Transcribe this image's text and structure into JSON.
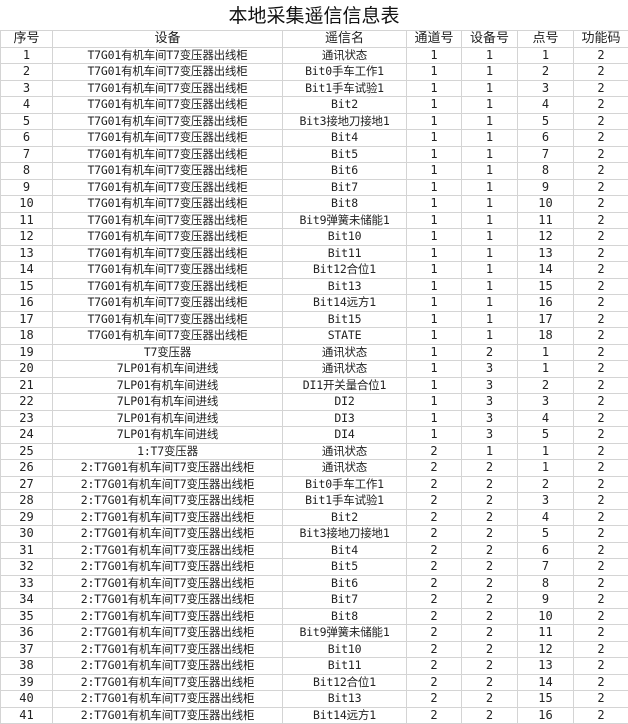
{
  "title": "本地采集遥信信息表",
  "columns": [
    "序号",
    "设备",
    "遥信名",
    "通道号",
    "设备号",
    "点号",
    "功能码"
  ],
  "rows": [
    [
      "1",
      "T7G01有机车间T7变压器出线柜",
      "通讯状态",
      "1",
      "1",
      "1",
      "2"
    ],
    [
      "2",
      "T7G01有机车间T7变压器出线柜",
      "Bit0手车工作1",
      "1",
      "1",
      "2",
      "2"
    ],
    [
      "3",
      "T7G01有机车间T7变压器出线柜",
      "Bit1手车试验1",
      "1",
      "1",
      "3",
      "2"
    ],
    [
      "4",
      "T7G01有机车间T7变压器出线柜",
      "Bit2",
      "1",
      "1",
      "4",
      "2"
    ],
    [
      "5",
      "T7G01有机车间T7变压器出线柜",
      "Bit3接地刀接地1",
      "1",
      "1",
      "5",
      "2"
    ],
    [
      "6",
      "T7G01有机车间T7变压器出线柜",
      "Bit4",
      "1",
      "1",
      "6",
      "2"
    ],
    [
      "7",
      "T7G01有机车间T7变压器出线柜",
      "Bit5",
      "1",
      "1",
      "7",
      "2"
    ],
    [
      "8",
      "T7G01有机车间T7变压器出线柜",
      "Bit6",
      "1",
      "1",
      "8",
      "2"
    ],
    [
      "9",
      "T7G01有机车间T7变压器出线柜",
      "Bit7",
      "1",
      "1",
      "9",
      "2"
    ],
    [
      "10",
      "T7G01有机车间T7变压器出线柜",
      "Bit8",
      "1",
      "1",
      "10",
      "2"
    ],
    [
      "11",
      "T7G01有机车间T7变压器出线柜",
      "Bit9弹簧未储能1",
      "1",
      "1",
      "11",
      "2"
    ],
    [
      "12",
      "T7G01有机车间T7变压器出线柜",
      "Bit10",
      "1",
      "1",
      "12",
      "2"
    ],
    [
      "13",
      "T7G01有机车间T7变压器出线柜",
      "Bit11",
      "1",
      "1",
      "13",
      "2"
    ],
    [
      "14",
      "T7G01有机车间T7变压器出线柜",
      "Bit12合位1",
      "1",
      "1",
      "14",
      "2"
    ],
    [
      "15",
      "T7G01有机车间T7变压器出线柜",
      "Bit13",
      "1",
      "1",
      "15",
      "2"
    ],
    [
      "16",
      "T7G01有机车间T7变压器出线柜",
      "Bit14远方1",
      "1",
      "1",
      "16",
      "2"
    ],
    [
      "17",
      "T7G01有机车间T7变压器出线柜",
      "Bit15",
      "1",
      "1",
      "17",
      "2"
    ],
    [
      "18",
      "T7G01有机车间T7变压器出线柜",
      "STATE",
      "1",
      "1",
      "18",
      "2"
    ],
    [
      "19",
      "T7变压器",
      "通讯状态",
      "1",
      "2",
      "1",
      "2"
    ],
    [
      "20",
      "7LP01有机车间进线",
      "通讯状态",
      "1",
      "3",
      "1",
      "2"
    ],
    [
      "21",
      "7LP01有机车间进线",
      "DI1开关量合位1",
      "1",
      "3",
      "2",
      "2"
    ],
    [
      "22",
      "7LP01有机车间进线",
      "DI2",
      "1",
      "3",
      "3",
      "2"
    ],
    [
      "23",
      "7LP01有机车间进线",
      "DI3",
      "1",
      "3",
      "4",
      "2"
    ],
    [
      "24",
      "7LP01有机车间进线",
      "DI4",
      "1",
      "3",
      "5",
      "2"
    ],
    [
      "25",
      "1:T7变压器",
      "通讯状态",
      "2",
      "1",
      "1",
      "2"
    ],
    [
      "26",
      "2:T7G01有机车间T7变压器出线柜",
      "通讯状态",
      "2",
      "2",
      "1",
      "2"
    ],
    [
      "27",
      "2:T7G01有机车间T7变压器出线柜",
      "Bit0手车工作1",
      "2",
      "2",
      "2",
      "2"
    ],
    [
      "28",
      "2:T7G01有机车间T7变压器出线柜",
      "Bit1手车试验1",
      "2",
      "2",
      "3",
      "2"
    ],
    [
      "29",
      "2:T7G01有机车间T7变压器出线柜",
      "Bit2",
      "2",
      "2",
      "4",
      "2"
    ],
    [
      "30",
      "2:T7G01有机车间T7变压器出线柜",
      "Bit3接地刀接地1",
      "2",
      "2",
      "5",
      "2"
    ],
    [
      "31",
      "2:T7G01有机车间T7变压器出线柜",
      "Bit4",
      "2",
      "2",
      "6",
      "2"
    ],
    [
      "32",
      "2:T7G01有机车间T7变压器出线柜",
      "Bit5",
      "2",
      "2",
      "7",
      "2"
    ],
    [
      "33",
      "2:T7G01有机车间T7变压器出线柜",
      "Bit6",
      "2",
      "2",
      "8",
      "2"
    ],
    [
      "34",
      "2:T7G01有机车间T7变压器出线柜",
      "Bit7",
      "2",
      "2",
      "9",
      "2"
    ],
    [
      "35",
      "2:T7G01有机车间T7变压器出线柜",
      "Bit8",
      "2",
      "2",
      "10",
      "2"
    ],
    [
      "36",
      "2:T7G01有机车间T7变压器出线柜",
      "Bit9弹簧未储能1",
      "2",
      "2",
      "11",
      "2"
    ],
    [
      "37",
      "2:T7G01有机车间T7变压器出线柜",
      "Bit10",
      "2",
      "2",
      "12",
      "2"
    ],
    [
      "38",
      "2:T7G01有机车间T7变压器出线柜",
      "Bit11",
      "2",
      "2",
      "13",
      "2"
    ],
    [
      "39",
      "2:T7G01有机车间T7变压器出线柜",
      "Bit12合位1",
      "2",
      "2",
      "14",
      "2"
    ],
    [
      "40",
      "2:T7G01有机车间T7变压器出线柜",
      "Bit13",
      "2",
      "2",
      "15",
      "2"
    ],
    [
      "41",
      "2:T7G01有机车间T7变压器出线柜",
      "Bit14远方1",
      "2",
      "2",
      "16",
      "2"
    ]
  ]
}
